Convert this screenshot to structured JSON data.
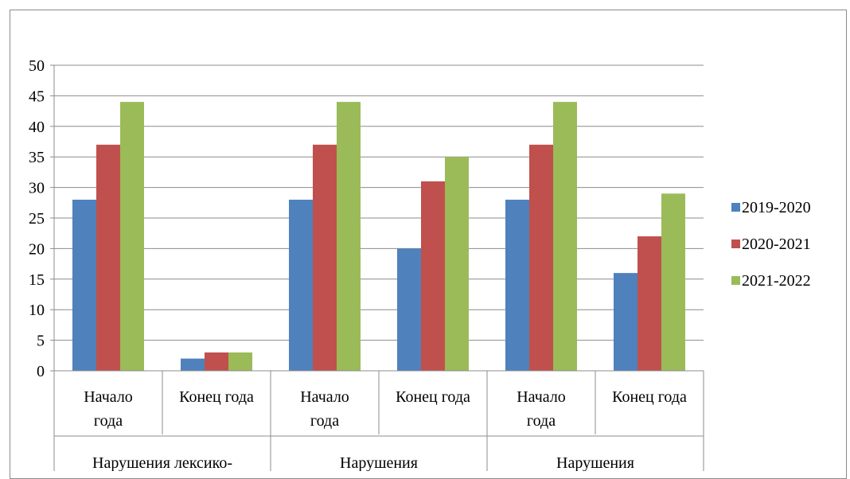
{
  "chart_data": {
    "type": "bar",
    "title": "",
    "xlabel": "",
    "ylabel": "",
    "ylim": [
      0,
      50
    ],
    "y_ticks": [
      0,
      5,
      10,
      15,
      20,
      25,
      30,
      35,
      40,
      45,
      50
    ],
    "grid": true,
    "legend_position": "right",
    "categories": [
      {
        "label_lines": [
          "Начало",
          "года"
        ],
        "group": 0
      },
      {
        "label_lines": [
          "Конец года"
        ],
        "group": 0
      },
      {
        "label_lines": [
          "Начало",
          "года"
        ],
        "group": 1
      },
      {
        "label_lines": [
          "Конец года"
        ],
        "group": 1
      },
      {
        "label_lines": [
          "Начало",
          "года"
        ],
        "group": 2
      },
      {
        "label_lines": [
          "Конец года"
        ],
        "group": 2
      }
    ],
    "groups": [
      "Нарушения лексико-",
      "Нарушения",
      "Нарушения"
    ],
    "series": [
      {
        "name": "2019-2020",
        "color": "#4f81bd",
        "values": [
          28,
          2,
          28,
          20,
          28,
          16
        ]
      },
      {
        "name": "2020-2021",
        "color": "#c0504d",
        "values": [
          37,
          3,
          37,
          31,
          37,
          22
        ]
      },
      {
        "name": "2021-2022",
        "color": "#9bbb59",
        "values": [
          44,
          3,
          44,
          35,
          44,
          29
        ]
      }
    ]
  }
}
